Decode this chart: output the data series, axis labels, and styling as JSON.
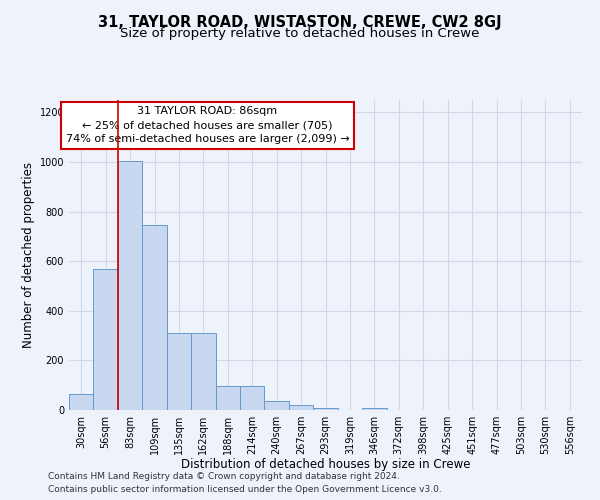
{
  "title": "31, TAYLOR ROAD, WISTASTON, CREWE, CW2 8GJ",
  "subtitle": "Size of property relative to detached houses in Crewe",
  "xlabel": "Distribution of detached houses by size in Crewe",
  "ylabel": "Number of detached properties",
  "bar_labels": [
    "30sqm",
    "56sqm",
    "83sqm",
    "109sqm",
    "135sqm",
    "162sqm",
    "188sqm",
    "214sqm",
    "240sqm",
    "267sqm",
    "293sqm",
    "319sqm",
    "346sqm",
    "372sqm",
    "398sqm",
    "425sqm",
    "451sqm",
    "477sqm",
    "503sqm",
    "530sqm",
    "556sqm"
  ],
  "bar_values": [
    65,
    570,
    1005,
    745,
    310,
    310,
    95,
    95,
    35,
    20,
    10,
    0,
    10,
    0,
    0,
    0,
    0,
    0,
    0,
    0,
    0
  ],
  "bar_color": "#c8d8f0",
  "bar_edge_color": "#6699cc",
  "grid_color": "#d0d8e8",
  "background_color": "#eef2fb",
  "vline_x_idx": 2,
  "vline_color": "#cc0000",
  "annotation_line1": "31 TAYLOR ROAD: 86sqm",
  "annotation_line2": "← 25% of detached houses are smaller (705)",
  "annotation_line3": "74% of semi-detached houses are larger (2,099) →",
  "annotation_box_color": "#ffffff",
  "annotation_box_edge_color": "#cc0000",
  "footer1": "Contains HM Land Registry data © Crown copyright and database right 2024.",
  "footer2": "Contains public sector information licensed under the Open Government Licence v3.0.",
  "ylim": [
    0,
    1250
  ],
  "yticks": [
    0,
    200,
    400,
    600,
    800,
    1000,
    1200
  ],
  "title_fontsize": 10.5,
  "subtitle_fontsize": 9.5,
  "axis_label_fontsize": 8.5,
  "tick_fontsize": 7,
  "annotation_fontsize": 8,
  "footer_fontsize": 6.5
}
